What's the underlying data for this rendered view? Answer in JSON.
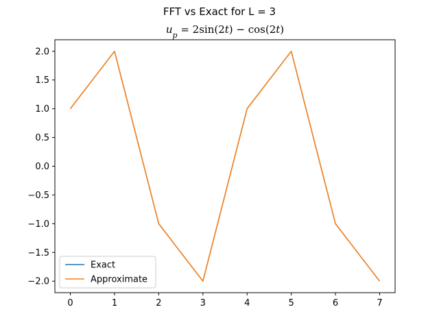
{
  "chart_data": {
    "type": "line",
    "suptitle": "FFT vs Exact for L = 3",
    "title": {
      "text": "u_p = 2sin(2t) − cos(2t)",
      "parts": [
        {
          "text": "u",
          "style": "it"
        },
        {
          "text": "p",
          "style": "it",
          "sub": true
        },
        {
          "text": " = 2sin(2",
          "style": "rm"
        },
        {
          "text": "t",
          "style": "it"
        },
        {
          "text": ") − cos(2",
          "style": "rm"
        },
        {
          "text": "t",
          "style": "it"
        },
        {
          "text": ")",
          "style": "rm"
        }
      ]
    },
    "xlabel": "",
    "ylabel": "",
    "x": [
      0,
      1,
      2,
      3,
      4,
      5,
      6,
      7
    ],
    "xlim": [
      -0.35,
      7.35
    ],
    "ylim": [
      -2.2,
      2.2
    ],
    "xticks": [
      0,
      1,
      2,
      3,
      4,
      5,
      6,
      7
    ],
    "xtick_labels": [
      "0",
      "1",
      "2",
      "3",
      "4",
      "5",
      "6",
      "7"
    ],
    "yticks": [
      -2.0,
      -1.5,
      -1.0,
      -0.5,
      0.0,
      0.5,
      1.0,
      1.5,
      2.0
    ],
    "ytick_labels": [
      "−2.0",
      "−1.5",
      "−1.0",
      "−0.5",
      "0.0",
      "0.5",
      "1.0",
      "1.5",
      "2.0"
    ],
    "grid": false,
    "legend_position": "lower-left",
    "series": [
      {
        "name": "Exact",
        "color": "#1f77b4",
        "values": [
          1,
          2,
          -1,
          -2,
          1,
          2,
          -1,
          -2
        ]
      },
      {
        "name": "Approximate",
        "color": "#ff7f0e",
        "values": [
          1,
          2,
          -1,
          -2,
          1,
          2,
          -1,
          -2
        ]
      }
    ]
  }
}
